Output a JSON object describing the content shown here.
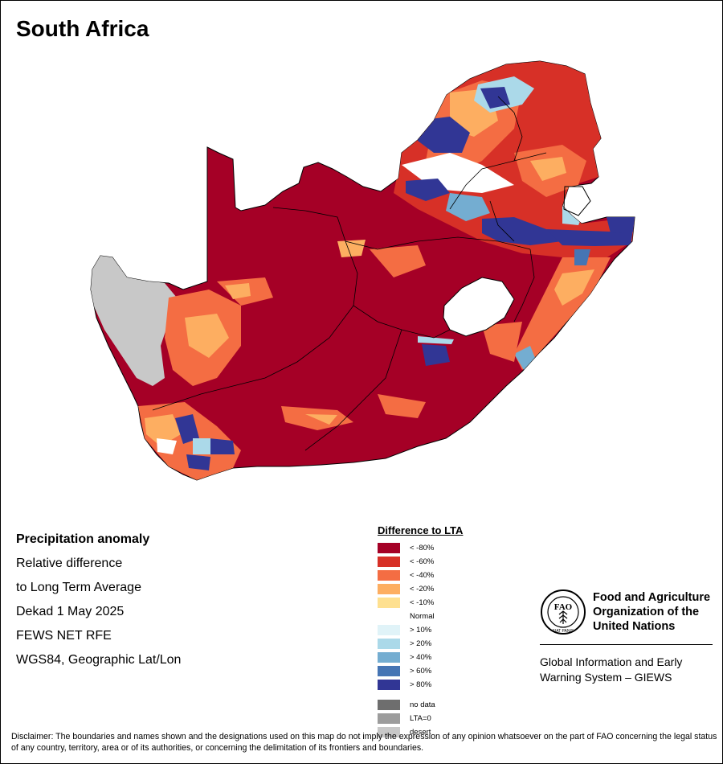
{
  "title": "South Africa",
  "info": {
    "heading": "Precipitation anomaly",
    "line1": "Relative difference",
    "line2": "to Long Term Average",
    "line3": "Dekad 1 May 2025",
    "line4": "FEWS NET RFE",
    "line5": "WGS84, Geographic Lat/Lon"
  },
  "legend": {
    "title": "Difference to LTA",
    "entries": [
      {
        "label": "< -80%",
        "color": "#a50026"
      },
      {
        "label": "< -60%",
        "color": "#d73027"
      },
      {
        "label": "< -40%",
        "color": "#f46d43"
      },
      {
        "label": "< -20%",
        "color": "#fdae61"
      },
      {
        "label": "< -10%",
        "color": "#fee090"
      },
      {
        "label": "Normal",
        "color": "#ffffff"
      },
      {
        "label": "> 10%",
        "color": "#e0f3f8"
      },
      {
        "label": "> 20%",
        "color": "#abd9e9"
      },
      {
        "label": "> 40%",
        "color": "#74add1"
      },
      {
        "label": "> 60%",
        "color": "#4575b4"
      },
      {
        "label": "> 80%",
        "color": "#313695"
      }
    ],
    "special": [
      {
        "label": "no data",
        "color": "#6e6e6e"
      },
      {
        "label": "LTA=0",
        "color": "#9c9c9c"
      },
      {
        "label": "desert",
        "color": "#c8c8c8"
      }
    ]
  },
  "org": {
    "logo_text": "FAO",
    "logo_motto": "FIAT PANIS",
    "name_line1": "Food and Agriculture",
    "name_line2": "Organization of the",
    "name_line3": "United Nations",
    "system_line1": "Global Information and Early",
    "system_line2": "Warning System – GIEWS"
  },
  "disclaimer": "Disclaimer: The boundaries and names shown and the designations used on this map do not imply the expression of any opinion whatsoever on the part of FAO concerning the legal status of any country, territory, area or of its authorities, or concerning the delimitation of its frontiers and boundaries."
}
